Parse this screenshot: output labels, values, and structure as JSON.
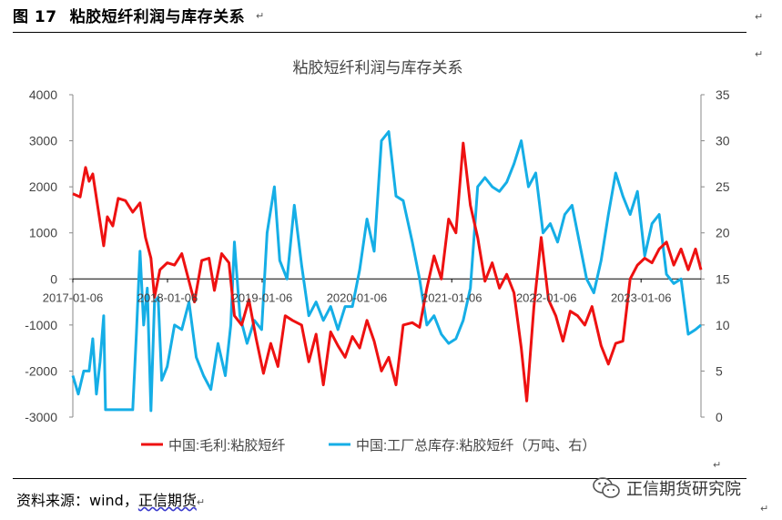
{
  "figure": {
    "number": "图 17",
    "title": "粘胶短纤利润与库存关系"
  },
  "source": {
    "label": "资料来源：wind，",
    "org": "正信期货"
  },
  "brand": {
    "name": "正信期货研究院",
    "icon": "wechat-icon"
  },
  "chart_data": {
    "type": "line",
    "title": "粘胶短纤利润与库存关系",
    "xticks": [
      "2017-01-06",
      "2018-01-06",
      "2019-01-06",
      "2020-01-06",
      "2021-01-06",
      "2022-01-06",
      "2023-01-06"
    ],
    "y_left": {
      "ticks": [
        "4000",
        "3000",
        "2000",
        "1000",
        "0",
        "-1000",
        "-2000",
        "-3000"
      ],
      "range": [
        -3000,
        4000
      ]
    },
    "y_right": {
      "ticks": [
        "35",
        "30",
        "25",
        "20",
        "15",
        "10",
        "5",
        "0"
      ],
      "range": [
        0,
        35
      ]
    },
    "colors": {
      "profit": "#ee1111",
      "inventory": "#15aee6"
    },
    "series": [
      {
        "name": "中国:毛利:粘胶短纤",
        "axis": "left",
        "points": [
          [
            "2017-01-06",
            1850
          ],
          [
            "2017-02-03",
            1780
          ],
          [
            "2017-02-24",
            2420
          ],
          [
            "2017-03-10",
            2120
          ],
          [
            "2017-03-24",
            2280
          ],
          [
            "2017-04-14",
            1500
          ],
          [
            "2017-05-05",
            720
          ],
          [
            "2017-05-19",
            1350
          ],
          [
            "2017-06-09",
            1150
          ],
          [
            "2017-06-30",
            1750
          ],
          [
            "2017-07-28",
            1700
          ],
          [
            "2017-08-25",
            1450
          ],
          [
            "2017-09-22",
            1650
          ],
          [
            "2017-10-13",
            900
          ],
          [
            "2017-11-03",
            450
          ],
          [
            "2017-11-17",
            -400
          ],
          [
            "2017-12-08",
            200
          ],
          [
            "2018-01-05",
            350
          ],
          [
            "2018-02-02",
            300
          ],
          [
            "2018-03-02",
            550
          ],
          [
            "2018-03-30",
            -50
          ],
          [
            "2018-04-20",
            -500
          ],
          [
            "2018-05-18",
            400
          ],
          [
            "2018-06-15",
            450
          ],
          [
            "2018-07-06",
            -250
          ],
          [
            "2018-08-03",
            550
          ],
          [
            "2018-08-31",
            350
          ],
          [
            "2018-09-21",
            -800
          ],
          [
            "2018-10-19",
            -1000
          ],
          [
            "2018-11-16",
            -450
          ],
          [
            "2018-12-14",
            -1300
          ],
          [
            "2019-01-11",
            -2050
          ],
          [
            "2019-02-08",
            -1400
          ],
          [
            "2019-03-08",
            -1900
          ],
          [
            "2019-04-05",
            -800
          ],
          [
            "2019-05-03",
            -900
          ],
          [
            "2019-06-07",
            -1000
          ],
          [
            "2019-07-05",
            -1800
          ],
          [
            "2019-08-02",
            -1200
          ],
          [
            "2019-08-30",
            -2300
          ],
          [
            "2019-09-27",
            -1150
          ],
          [
            "2019-10-25",
            -1450
          ],
          [
            "2019-11-22",
            -1700
          ],
          [
            "2019-12-20",
            -1250
          ],
          [
            "2020-01-17",
            -1500
          ],
          [
            "2020-02-14",
            -900
          ],
          [
            "2020-03-13",
            -1350
          ],
          [
            "2020-04-10",
            -2000
          ],
          [
            "2020-05-08",
            -1700
          ],
          [
            "2020-06-05",
            -2300
          ],
          [
            "2020-07-03",
            -1000
          ],
          [
            "2020-08-07",
            -950
          ],
          [
            "2020-09-04",
            -1050
          ],
          [
            "2020-10-02",
            -200
          ],
          [
            "2020-10-30",
            500
          ],
          [
            "2020-11-27",
            0
          ],
          [
            "2020-12-25",
            1300
          ],
          [
            "2021-01-22",
            1000
          ],
          [
            "2021-02-19",
            2950
          ],
          [
            "2021-03-19",
            1600
          ],
          [
            "2021-04-16",
            900
          ],
          [
            "2021-05-14",
            -50
          ],
          [
            "2021-06-11",
            350
          ],
          [
            "2021-07-09",
            -200
          ],
          [
            "2021-08-06",
            100
          ],
          [
            "2021-09-03",
            -300
          ],
          [
            "2021-10-01",
            -1500
          ],
          [
            "2021-10-22",
            -2650
          ],
          [
            "2021-11-19",
            -600
          ],
          [
            "2021-12-17",
            900
          ],
          [
            "2022-01-14",
            -450
          ],
          [
            "2022-02-11",
            -800
          ],
          [
            "2022-03-11",
            -1350
          ],
          [
            "2022-04-08",
            -700
          ],
          [
            "2022-05-06",
            -800
          ],
          [
            "2022-06-03",
            -1000
          ],
          [
            "2022-07-01",
            -600
          ],
          [
            "2022-08-05",
            -1450
          ],
          [
            "2022-09-02",
            -1850
          ],
          [
            "2022-09-30",
            -1400
          ],
          [
            "2022-10-28",
            -1350
          ],
          [
            "2022-11-25",
            0
          ],
          [
            "2022-12-23",
            300
          ],
          [
            "2023-01-20",
            450
          ],
          [
            "2023-02-17",
            350
          ],
          [
            "2023-03-17",
            650
          ],
          [
            "2023-04-14",
            800
          ],
          [
            "2023-05-12",
            300
          ],
          [
            "2023-06-09",
            650
          ],
          [
            "2023-07-07",
            200
          ],
          [
            "2023-08-04",
            650
          ],
          [
            "2023-08-25",
            200
          ]
        ]
      },
      {
        "name": "中国:工厂总库存:粘胶短纤（万吨、右）",
        "axis": "right",
        "points": [
          [
            "2017-01-06",
            4.5
          ],
          [
            "2017-01-27",
            2.5
          ],
          [
            "2017-02-17",
            5.0
          ],
          [
            "2017-03-10",
            5.0
          ],
          [
            "2017-03-24",
            8.5
          ],
          [
            "2017-04-07",
            2.5
          ],
          [
            "2017-04-21",
            6.0
          ],
          [
            "2017-05-05",
            11.0
          ],
          [
            "2017-05-12",
            0.8
          ],
          [
            "2017-06-09",
            0.8
          ],
          [
            "2017-07-07",
            0.8
          ],
          [
            "2017-08-04",
            0.8
          ],
          [
            "2017-08-25",
            0.8
          ],
          [
            "2017-09-08",
            9.0
          ],
          [
            "2017-09-22",
            18.0
          ],
          [
            "2017-10-06",
            10.0
          ],
          [
            "2017-10-20",
            14.0
          ],
          [
            "2017-11-03",
            0.7
          ],
          [
            "2017-11-17",
            12.5
          ],
          [
            "2017-12-01",
            13.0
          ],
          [
            "2017-12-15",
            4.0
          ],
          [
            "2018-01-05",
            5.5
          ],
          [
            "2018-02-02",
            10.0
          ],
          [
            "2018-03-02",
            9.5
          ],
          [
            "2018-03-30",
            12.5
          ],
          [
            "2018-04-27",
            6.5
          ],
          [
            "2018-05-25",
            4.5
          ],
          [
            "2018-06-22",
            3.0
          ],
          [
            "2018-07-20",
            8.0
          ],
          [
            "2018-08-17",
            4.5
          ],
          [
            "2018-09-07",
            10.0
          ],
          [
            "2018-09-21",
            19.0
          ],
          [
            "2018-10-12",
            11.0
          ],
          [
            "2018-11-09",
            8.0
          ],
          [
            "2018-12-07",
            10.5
          ],
          [
            "2019-01-04",
            9.5
          ],
          [
            "2019-01-25",
            20.0
          ],
          [
            "2019-02-22",
            25.0
          ],
          [
            "2019-03-15",
            17.0
          ],
          [
            "2019-04-12",
            15.0
          ],
          [
            "2019-05-10",
            23.0
          ],
          [
            "2019-06-07",
            16.5
          ],
          [
            "2019-07-05",
            11.0
          ],
          [
            "2019-08-02",
            12.5
          ],
          [
            "2019-08-30",
            10.5
          ],
          [
            "2019-09-27",
            12.0
          ],
          [
            "2019-10-25",
            9.5
          ],
          [
            "2019-11-22",
            12.0
          ],
          [
            "2019-12-20",
            12.0
          ],
          [
            "2020-01-17",
            16.0
          ],
          [
            "2020-02-14",
            21.5
          ],
          [
            "2020-03-13",
            18.0
          ],
          [
            "2020-04-10",
            30.0
          ],
          [
            "2020-05-08",
            31.0
          ],
          [
            "2020-06-05",
            24.0
          ],
          [
            "2020-07-03",
            23.5
          ],
          [
            "2020-08-07",
            19.0
          ],
          [
            "2020-09-04",
            15.0
          ],
          [
            "2020-10-02",
            10.0
          ],
          [
            "2020-10-30",
            11.0
          ],
          [
            "2020-11-27",
            9.0
          ],
          [
            "2020-12-25",
            8.0
          ],
          [
            "2021-01-22",
            8.5
          ],
          [
            "2021-02-19",
            10.5
          ],
          [
            "2021-03-19",
            14.0
          ],
          [
            "2021-04-16",
            25.0
          ],
          [
            "2021-05-14",
            26.0
          ],
          [
            "2021-06-11",
            25.0
          ],
          [
            "2021-07-09",
            24.5
          ],
          [
            "2021-08-06",
            25.5
          ],
          [
            "2021-09-03",
            27.5
          ],
          [
            "2021-10-01",
            30.0
          ],
          [
            "2021-10-29",
            25.0
          ],
          [
            "2021-11-26",
            26.5
          ],
          [
            "2021-12-24",
            20.0
          ],
          [
            "2022-01-21",
            21.0
          ],
          [
            "2022-02-18",
            19.0
          ],
          [
            "2022-03-18",
            22.0
          ],
          [
            "2022-04-15",
            23.0
          ],
          [
            "2022-05-13",
            19.0
          ],
          [
            "2022-06-10",
            15.0
          ],
          [
            "2022-07-08",
            13.5
          ],
          [
            "2022-08-05",
            17.0
          ],
          [
            "2022-09-02",
            22.0
          ],
          [
            "2022-09-30",
            26.5
          ],
          [
            "2022-10-28",
            24.0
          ],
          [
            "2022-11-25",
            22.0
          ],
          [
            "2022-12-23",
            24.5
          ],
          [
            "2023-01-20",
            17.5
          ],
          [
            "2023-02-17",
            21.0
          ],
          [
            "2023-03-17",
            22.0
          ],
          [
            "2023-04-14",
            15.5
          ],
          [
            "2023-05-12",
            14.5
          ],
          [
            "2023-06-09",
            15.0
          ],
          [
            "2023-07-07",
            9.0
          ],
          [
            "2023-08-04",
            9.5
          ],
          [
            "2023-08-25",
            10.0
          ]
        ]
      }
    ]
  }
}
